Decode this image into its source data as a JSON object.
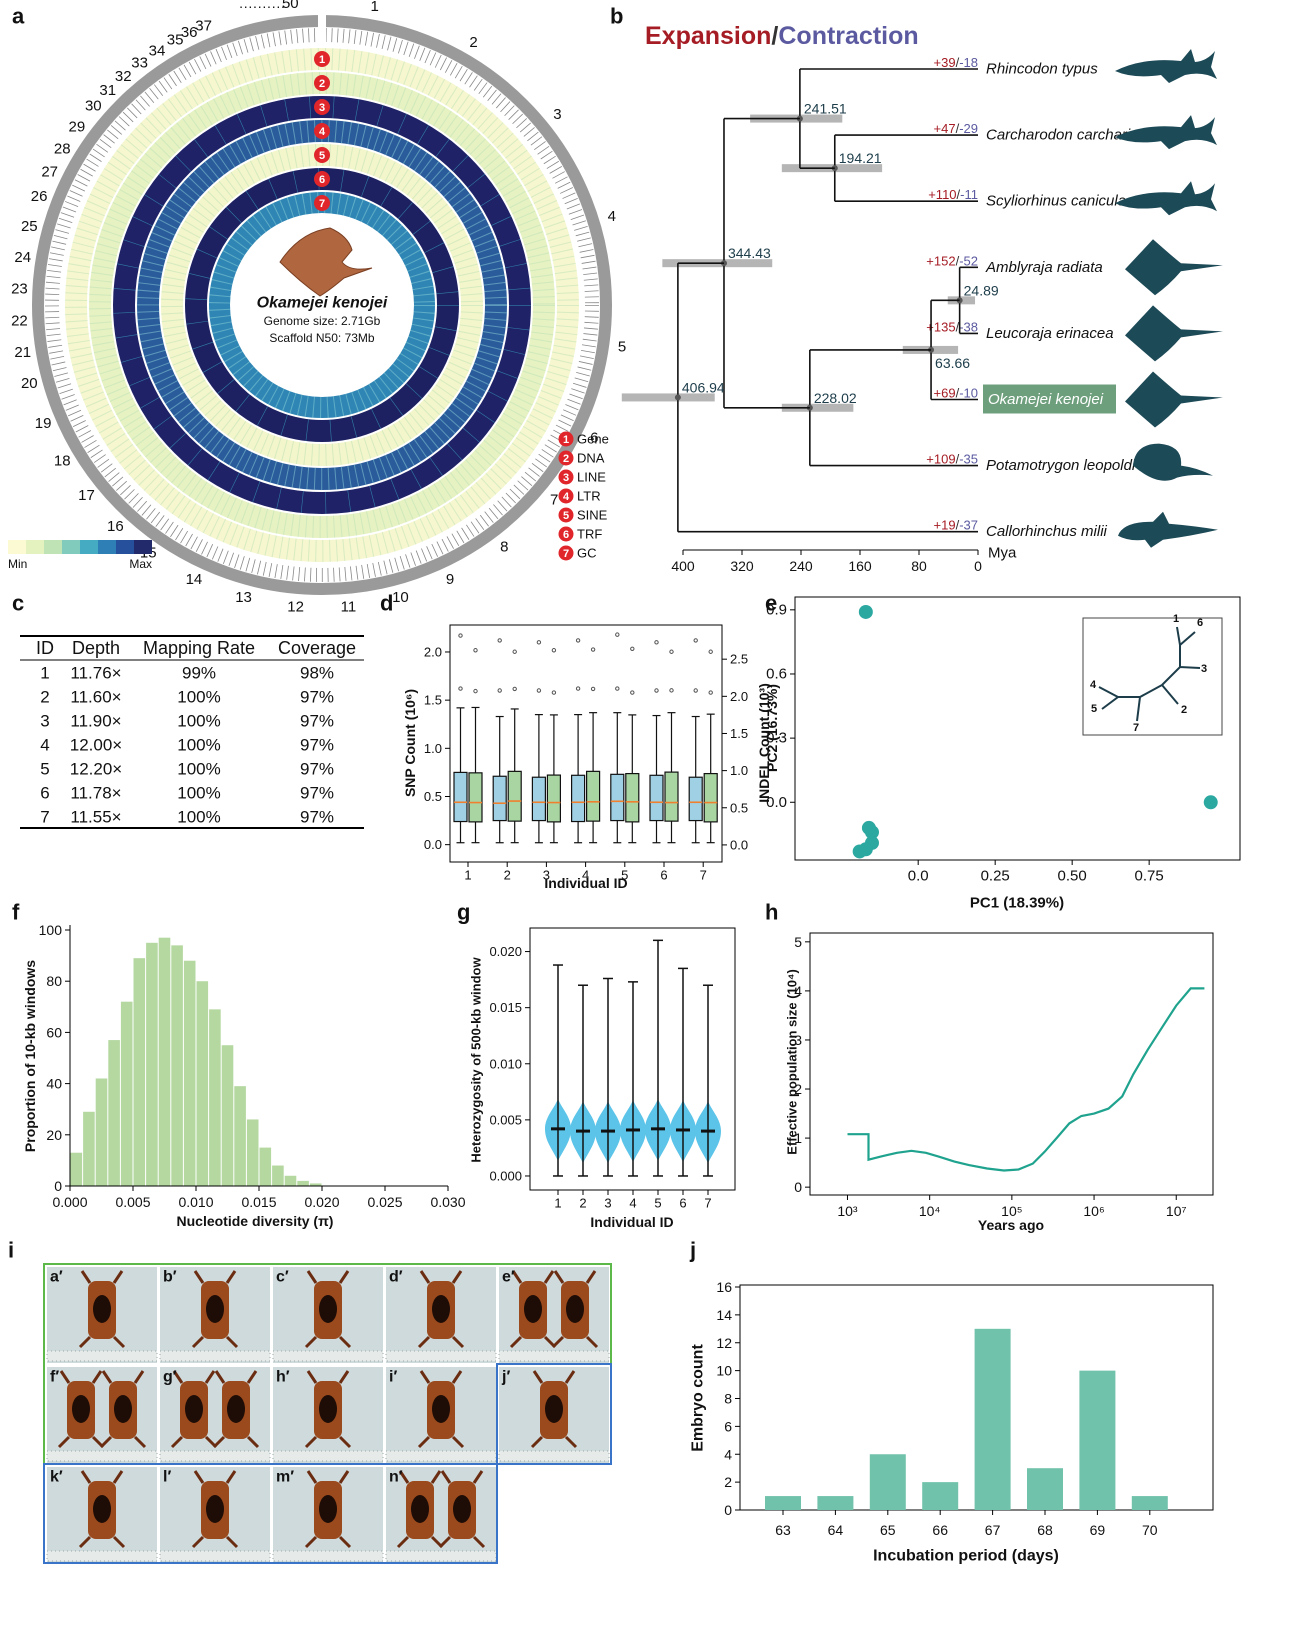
{
  "a": {
    "letter": "a",
    "chromosomes": [
      "1",
      "2",
      "3",
      "4",
      "5",
      "6",
      "7",
      "8",
      "9",
      "10",
      "11",
      "12",
      "13",
      "14",
      "15",
      "16",
      "17",
      "18",
      "19",
      "20",
      "21",
      "22",
      "23",
      "24",
      "25",
      "26",
      "27",
      "28",
      "29",
      "30",
      "31",
      "32",
      "33",
      "34",
      "35",
      "36",
      "37",
      "50"
    ],
    "gap_marker": "··········",
    "species": "Okamejei kenojei",
    "genome_size": "Genome size: 2.71Gb",
    "scaffold_n50": "Scaffold N50: 73Mb",
    "tracks": [
      {
        "id": "1",
        "name": "Gene",
        "color": "#f6f7cf"
      },
      {
        "id": "2",
        "name": "DNA",
        "color": "#e6f2c2"
      },
      {
        "id": "3",
        "name": "LINE",
        "color": "#1f2266"
      },
      {
        "id": "4",
        "name": "LTR",
        "color": "#2a5c9c"
      },
      {
        "id": "5",
        "name": "SINE",
        "color": "#f3f6ca"
      },
      {
        "id": "6",
        "name": "TRF",
        "color": "#1d2161"
      },
      {
        "id": "7",
        "name": "GC",
        "color": "#2f86b5"
      }
    ],
    "color_scale": {
      "min": "Min",
      "max": "Max",
      "colors": [
        "#fbfad3",
        "#e4f2c0",
        "#bfe3b5",
        "#80cbbb",
        "#45abc3",
        "#2d7fb6",
        "#27509c",
        "#222a6b"
      ]
    }
  },
  "b": {
    "letter": "b",
    "title": {
      "expansion": "Expansion",
      "separator": "/",
      "contraction": "Contraction"
    },
    "axis": {
      "label": "Mya",
      "xlim": [
        400,
        0
      ],
      "xticks": [
        400,
        320,
        240,
        160,
        80,
        0
      ]
    },
    "tree": {
      "age": 406.94,
      "ci": [
        483,
        357
      ],
      "children": [
        {
          "age": 344.43,
          "ci": [
            428,
            279
          ],
          "children": [
            {
              "age": 241.51,
              "ci": [
                309,
                184
              ],
              "children": [
                {
                  "name": "Rhincodon typus",
                  "expansion": "+39",
                  "contraction": "-18"
                },
                {
                  "age": 194.21,
                  "ci": [
                    266,
                    130
                  ],
                  "children": [
                    {
                      "name": "Carcharodon carcharias",
                      "expansion": "+47",
                      "contraction": "-29"
                    },
                    {
                      "name": "Scyliorhinus canicula",
                      "expansion": "+110",
                      "contraction": "-11"
                    }
                  ]
                }
              ]
            },
            {
              "age": 228.02,
              "ci": [
                266,
                169
              ],
              "children": [
                {
                  "age": 63.66,
                  "ci": [
                    102,
                    27
                  ],
                  "children": [
                    {
                      "age": 24.89,
                      "ci": [
                        41,
                        4
                      ],
                      "children": [
                        {
                          "name": "Amblyraja radiata",
                          "expansion": "+152",
                          "contraction": "-52"
                        },
                        {
                          "name": "Leucoraja erinacea",
                          "expansion": "+135",
                          "contraction": "-38"
                        }
                      ]
                    },
                    {
                      "name": "Okamejei kenojei",
                      "expansion": "+69",
                      "contraction": "-10",
                      "highlighted": true
                    }
                  ]
                },
                {
                  "name": "Potamotrygon leopoldi",
                  "expansion": "+109",
                  "contraction": "-35"
                }
              ]
            }
          ]
        },
        {
          "name": "Callorhinchus milii",
          "expansion": "+19",
          "contraction": "-37"
        }
      ]
    }
  },
  "c": {
    "letter": "c",
    "header": [
      "ID",
      "Depth",
      "Mapping Rate",
      "Coverage"
    ],
    "rows": [
      [
        "1",
        "11.76×",
        "99%",
        "98%"
      ],
      [
        "2",
        "11.60×",
        "100%",
        "97%"
      ],
      [
        "3",
        "11.90×",
        "100%",
        "97%"
      ],
      [
        "4",
        "12.00×",
        "100%",
        "97%"
      ],
      [
        "5",
        "12.20×",
        "100%",
        "97%"
      ],
      [
        "6",
        "11.78×",
        "100%",
        "97%"
      ],
      [
        "7",
        "11.55×",
        "100%",
        "97%"
      ]
    ]
  },
  "d": {
    "letter": "d",
    "xlabel": "Individual ID",
    "ylabel": "SNP Count (10⁶)",
    "y2label": "INDEL Count (10³)",
    "categories": [
      1,
      2,
      3,
      4,
      5,
      6,
      7
    ],
    "ylim": [
      -0.18,
      2.28
    ],
    "yticks": [
      {
        "value": 0,
        "label": "0.0"
      },
      0.5,
      {
        "value": 1,
        "label": "1.0"
      },
      1.5,
      {
        "value": 2,
        "label": "2.0"
      }
    ],
    "y2lim": [
      -0.23,
      2.96
    ],
    "y2ticks": [
      {
        "value": 0,
        "label": "0.0"
      },
      0.5,
      {
        "value": 1,
        "label": "1.0"
      },
      1.5,
      {
        "value": 2,
        "label": "2.0"
      },
      2.5
    ],
    "median_color": "#f07f2e",
    "series": [
      {
        "color": "#9fd0e4",
        "boxes": [
          {
            "low": 0.02,
            "q1": 0.24,
            "median": 0.44,
            "q3": 0.75,
            "high": 1.42,
            "outliers": [
              1.62,
              2.17
            ]
          },
          {
            "low": 0.02,
            "q1": 0.25,
            "median": 0.43,
            "q3": 0.71,
            "high": 1.33,
            "outliers": [
              1.6,
              2.12
            ]
          },
          {
            "low": 0.02,
            "q1": 0.25,
            "median": 0.44,
            "q3": 0.7,
            "high": 1.35,
            "outliers": [
              1.6,
              2.1
            ]
          },
          {
            "low": 0.02,
            "q1": 0.24,
            "median": 0.44,
            "q3": 0.72,
            "high": 1.35,
            "outliers": [
              1.62,
              2.12
            ]
          },
          {
            "low": 0.02,
            "q1": 0.25,
            "median": 0.45,
            "q3": 0.73,
            "high": 1.37,
            "outliers": [
              1.62,
              2.18
            ]
          },
          {
            "low": 0.02,
            "q1": 0.25,
            "median": 0.44,
            "q3": 0.72,
            "high": 1.34,
            "outliers": [
              1.6,
              2.1
            ]
          },
          {
            "low": 0.02,
            "q1": 0.25,
            "median": 0.44,
            "q3": 0.7,
            "high": 1.33,
            "outliers": [
              1.6,
              2.12
            ]
          }
        ]
      },
      {
        "color": "#a8d5a2",
        "axis": "y2",
        "boxes": [
          {
            "low": 0.03,
            "q1": 0.31,
            "median": 0.57,
            "q3": 0.97,
            "high": 1.85,
            "outliers": [
              2.07,
              2.62
            ]
          },
          {
            "low": 0.03,
            "q1": 0.32,
            "median": 0.59,
            "q3": 0.99,
            "high": 1.83,
            "outliers": [
              2.1,
              2.6
            ]
          },
          {
            "low": 0.03,
            "q1": 0.31,
            "median": 0.57,
            "q3": 0.94,
            "high": 1.75,
            "outliers": [
              2.05,
              2.62
            ]
          },
          {
            "low": 0.03,
            "q1": 0.32,
            "median": 0.58,
            "q3": 0.99,
            "high": 1.78,
            "outliers": [
              2.1,
              2.63
            ]
          },
          {
            "low": 0.03,
            "q1": 0.31,
            "median": 0.58,
            "q3": 0.96,
            "high": 1.75,
            "outliers": [
              2.05,
              2.64
            ]
          },
          {
            "low": 0.03,
            "q1": 0.32,
            "median": 0.57,
            "q3": 0.98,
            "high": 1.78,
            "outliers": [
              2.08,
              2.6
            ]
          },
          {
            "low": 0.03,
            "q1": 0.31,
            "median": 0.57,
            "q3": 0.96,
            "high": 1.76,
            "outliers": [
              2.05,
              2.6
            ]
          }
        ]
      }
    ]
  },
  "e": {
    "letter": "e",
    "type": "scatter",
    "xlabel": "PC1 (18.39%)",
    "ylabel": "PC2 (16.73%)",
    "xlim": [
      -0.4,
      1.045
    ],
    "ylim": [
      -0.27,
      0.96
    ],
    "xticks": [
      {
        "value": 0,
        "label": "0.0"
      },
      0.25,
      {
        "value": 0.5,
        "label": "0.50"
      },
      0.75
    ],
    "yticks": [
      {
        "value": 0,
        "label": "0.0"
      },
      0.3,
      0.6,
      0.9
    ],
    "color": "#2ba8a0",
    "x": [
      -0.17,
      0.95,
      -0.15,
      -0.15,
      -0.19,
      -0.17,
      -0.16
    ],
    "y": [
      0.89,
      0.0,
      -0.14,
      -0.19,
      -0.23,
      -0.22,
      -0.12
    ],
    "inset_labels": [
      "1",
      "2",
      "3",
      "4",
      "5",
      "6",
      "7"
    ]
  },
  "f": {
    "letter": "f",
    "type": "histogram",
    "xlabel": "Nucleotide diversity (π)",
    "ylabel": "Proportion of 10-kb windows",
    "bins": [
      0,
      0.001,
      0.002,
      0.003,
      0.004,
      0.005,
      0.006,
      0.007,
      0.008,
      0.009,
      0.01,
      0.011,
      0.012,
      0.013,
      0.014,
      0.015,
      0.016,
      0.017,
      0.018,
      0.019,
      0.02
    ],
    "counts": [
      13,
      29,
      42,
      57,
      72,
      89,
      95,
      97,
      94,
      88,
      80,
      69,
      55,
      39,
      26,
      15,
      8,
      4,
      2,
      1
    ],
    "color": "#b5d8a1",
    "xlim": [
      0,
      0.03
    ],
    "ylim": [
      0,
      100
    ],
    "xticks": [
      {
        "value": 0,
        "label": "0.000"
      },
      0.005,
      {
        "value": 0.01,
        "label": "0.010"
      },
      0.015,
      {
        "value": 0.02,
        "label": "0.020"
      },
      0.025,
      {
        "value": 0.03,
        "label": "0.030"
      }
    ],
    "yticks": [
      0,
      20,
      40,
      60,
      80,
      100
    ]
  },
  "g": {
    "letter": "g",
    "type": "violin",
    "xlabel": "Individual ID",
    "ylabel": "Heterozygosity of 500-kb window",
    "categories": [
      1,
      2,
      3,
      4,
      5,
      6,
      7
    ],
    "ylim": [
      -0.00125,
      0.0221
    ],
    "yticks": [
      {
        "value": 0,
        "label": "0.000"
      },
      0.005,
      {
        "value": 0.01,
        "label": "0.010"
      },
      0.015,
      {
        "value": 0.02,
        "label": "0.020"
      }
    ],
    "color": "#5bc4e8",
    "violins": [
      {
        "min": 0,
        "median": 0.0042,
        "max": 0.0188
      },
      {
        "min": 0,
        "median": 0.004,
        "max": 0.017
      },
      {
        "min": 0,
        "median": 0.004,
        "max": 0.0176
      },
      {
        "min": 0,
        "median": 0.0041,
        "max": 0.0173
      },
      {
        "min": 0,
        "median": 0.0042,
        "max": 0.021
      },
      {
        "min": 0,
        "median": 0.0041,
        "max": 0.0185
      },
      {
        "min": 0,
        "median": 0.004,
        "max": 0.017
      }
    ]
  },
  "h": {
    "letter": "h",
    "type": "line",
    "xlabel": "Years ago",
    "ylabel": "Effective population size (10⁴)",
    "log_x": true,
    "xlim": [
      350,
      28000000
    ],
    "ylim": [
      -0.16,
      5.18
    ],
    "xticks": [
      {
        "value": 1000,
        "label": "10³"
      },
      {
        "value": 10000,
        "label": "10⁴"
      },
      {
        "value": 100000,
        "label": "10⁵"
      },
      {
        "value": 1000000,
        "label": "10⁶"
      },
      {
        "value": 10000000,
        "label": "10⁷"
      }
    ],
    "yticks": [
      0,
      1,
      2,
      3,
      4,
      5
    ],
    "color": "#1fa38e",
    "x": [
      1000,
      1800,
      1800,
      2500,
      4000,
      6000,
      9000,
      13000,
      20000,
      30000,
      50000,
      80000,
      120000,
      180000,
      250000,
      350000,
      500000,
      700000,
      1000000,
      1500000,
      2200000,
      3000000,
      4500000,
      7000000,
      10000000,
      15000000,
      22000000
    ],
    "y": [
      1.08,
      1.08,
      0.56,
      0.62,
      0.7,
      0.74,
      0.7,
      0.62,
      0.52,
      0.45,
      0.38,
      0.34,
      0.36,
      0.48,
      0.72,
      1.0,
      1.3,
      1.45,
      1.5,
      1.6,
      1.85,
      2.3,
      2.8,
      3.3,
      3.7,
      4.05,
      4.05
    ]
  },
  "i": {
    "letter": "i",
    "labels": [
      "a′",
      "b′",
      "c′",
      "d′",
      "e′",
      "f′",
      "g′",
      "h′",
      "i′",
      "j′",
      "k′",
      "l′",
      "m′",
      "n′"
    ]
  },
  "j": {
    "letter": "j",
    "type": "bar",
    "xlabel": "Incubation period (days)",
    "ylabel": "Embryo count",
    "categories": [
      63,
      64,
      65,
      66,
      67,
      68,
      69,
      70
    ],
    "values": [
      1,
      1,
      4,
      2,
      13,
      3,
      10,
      1
    ],
    "color": "#71c2ab",
    "ylim": [
      0,
      16
    ],
    "yticks": [
      0,
      2,
      4,
      6,
      8,
      10,
      12,
      14,
      16
    ]
  }
}
